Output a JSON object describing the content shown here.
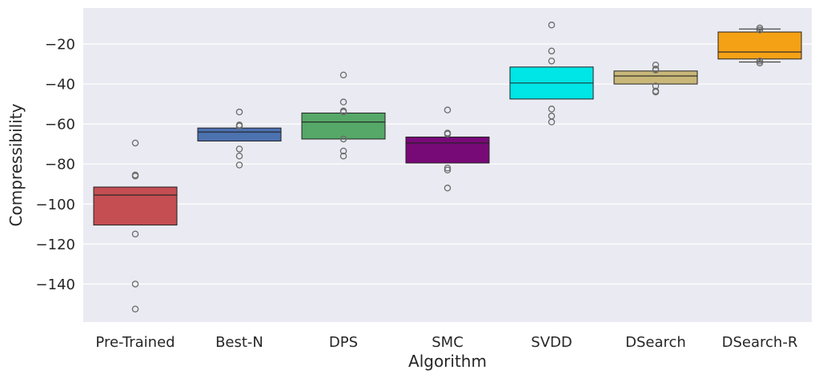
{
  "chart_data": {
    "type": "boxplot",
    "title": "",
    "xlabel": "Algorithm",
    "ylabel": "Compressibility",
    "ylim": [
      -159,
      -2
    ],
    "yticks": [
      -20,
      -40,
      -60,
      -80,
      -100,
      -120,
      -140
    ],
    "ytick_labels": [
      "−20",
      "−40",
      "−60",
      "−80",
      "−100",
      "−120",
      "−140"
    ],
    "grid": true,
    "colors": {
      "background": "#EAEAF2",
      "grid": "#FFFFFF",
      "box_edge": "#222222",
      "outlier_edge": "#6b6b6b"
    },
    "categories": [
      "Pre-Trained",
      "Best-N",
      "DPS",
      "SMC",
      "SVDD",
      "DSearch",
      "DSearch-R"
    ],
    "boxes": [
      {
        "name": "Pre-Trained",
        "color": "#C44E52",
        "q1": -110.5,
        "median": -95.5,
        "q3": -91.5,
        "whisker_low": -110.5,
        "whisker_high": -91.5,
        "outliers": [
          -69.5,
          -85.5,
          -86,
          -115,
          -140,
          -152.5
        ]
      },
      {
        "name": "Best-N",
        "color": "#4C72B0",
        "q1": -68.5,
        "median": -64,
        "q3": -62,
        "whisker_low": -68.5,
        "whisker_high": -62,
        "outliers": [
          -54,
          -60.5,
          -61,
          -72.5,
          -76,
          -80.5
        ]
      },
      {
        "name": "DPS",
        "color": "#55A868",
        "q1": -67.5,
        "median": -59,
        "q3": -54.5,
        "whisker_low": -67.5,
        "whisker_high": -54.5,
        "outliers": [
          -35.5,
          -49,
          -53.5,
          -54,
          -67.5,
          -73.5,
          -76
        ]
      },
      {
        "name": "SMC",
        "color": "#780A78",
        "q1": -79.5,
        "median": -69.5,
        "q3": -66.5,
        "whisker_low": -79.5,
        "whisker_high": -66.5,
        "outliers": [
          -53,
          -64.5,
          -65,
          -82,
          -83,
          -92
        ]
      },
      {
        "name": "SVDD",
        "color": "#00E5E5",
        "q1": -47.5,
        "median": -39.5,
        "q3": -31.5,
        "whisker_low": -47.5,
        "whisker_high": -31.5,
        "outliers": [
          -10.5,
          -23.5,
          -28.5,
          -52.5,
          -56,
          -59
        ]
      },
      {
        "name": "DSearch",
        "color": "#C8B778",
        "q1": -40,
        "median": -36,
        "q3": -33.5,
        "whisker_low": -40,
        "whisker_high": -33.5,
        "outliers": [
          -30.5,
          -32.5,
          -33,
          -41,
          -43.5,
          -44
        ]
      },
      {
        "name": "DSearch-R",
        "color": "#F5A116",
        "q1": -27.5,
        "median": -24,
        "q3": -14,
        "whisker_low": -29,
        "whisker_high": -12.5,
        "outliers": [
          -12,
          -13,
          -28.5,
          -29.5
        ]
      }
    ]
  }
}
